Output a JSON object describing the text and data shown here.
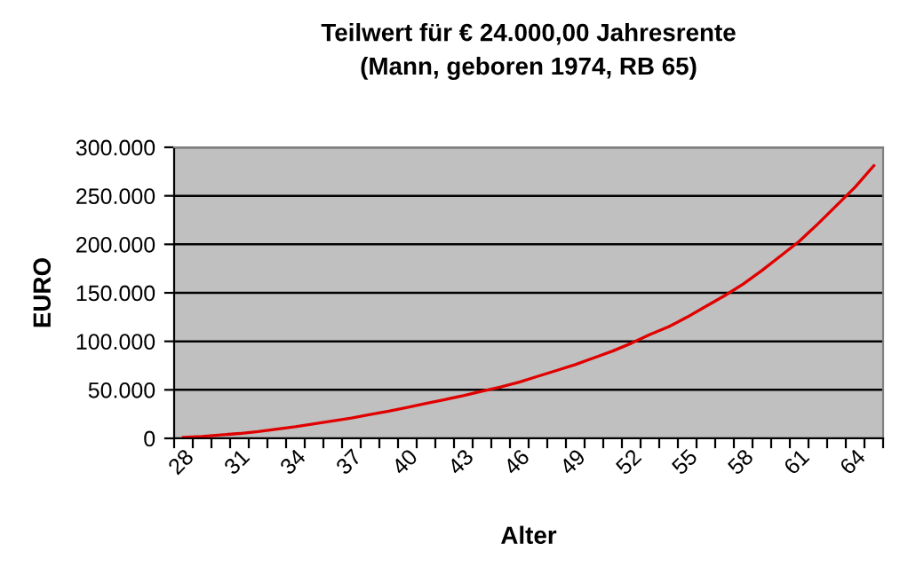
{
  "chart_data": {
    "type": "line",
    "title": "Teilwert für € 24.000,00 Jahresrente\n(Mann, geboren 1974, RB 65)",
    "xlabel": "Alter",
    "ylabel": "EURO",
    "categories": [
      "28",
      null,
      null,
      "31",
      null,
      null,
      "34",
      null,
      null,
      "37",
      null,
      null,
      "40",
      null,
      null,
      "43",
      null,
      null,
      "46",
      null,
      null,
      "49",
      null,
      null,
      "52",
      null,
      null,
      "55",
      null,
      null,
      "58",
      null,
      null,
      "61",
      null,
      null,
      "64",
      null
    ],
    "series": [
      {
        "color": "#e00000",
        "values": [
          1000,
          2000,
          3500,
          5000,
          7000,
          9500,
          12000,
          15000,
          18000,
          21000,
          24500,
          28000,
          32000,
          36000,
          40000,
          44000,
          48500,
          53000,
          58000,
          64000,
          70000,
          76000,
          83000,
          90000,
          98000,
          107000,
          115000,
          125000,
          136000,
          147000,
          159000,
          173000,
          188000,
          203000,
          221000,
          240000,
          259000,
          281000
        ]
      }
    ],
    "ylim": [
      0,
      300000
    ],
    "yticks": [
      0,
      {
        "value": 50000,
        "label": "50.000"
      },
      {
        "value": 100000,
        "label": "100.000"
      },
      {
        "value": 150000,
        "label": "150.000"
      },
      {
        "value": 200000,
        "label": "200.000"
      },
      {
        "value": 250000,
        "label": "250.000"
      },
      {
        "value": 300000,
        "label": "300.000"
      }
    ],
    "grid": "y",
    "legend": false,
    "marker": "none",
    "line_style": "solid"
  }
}
